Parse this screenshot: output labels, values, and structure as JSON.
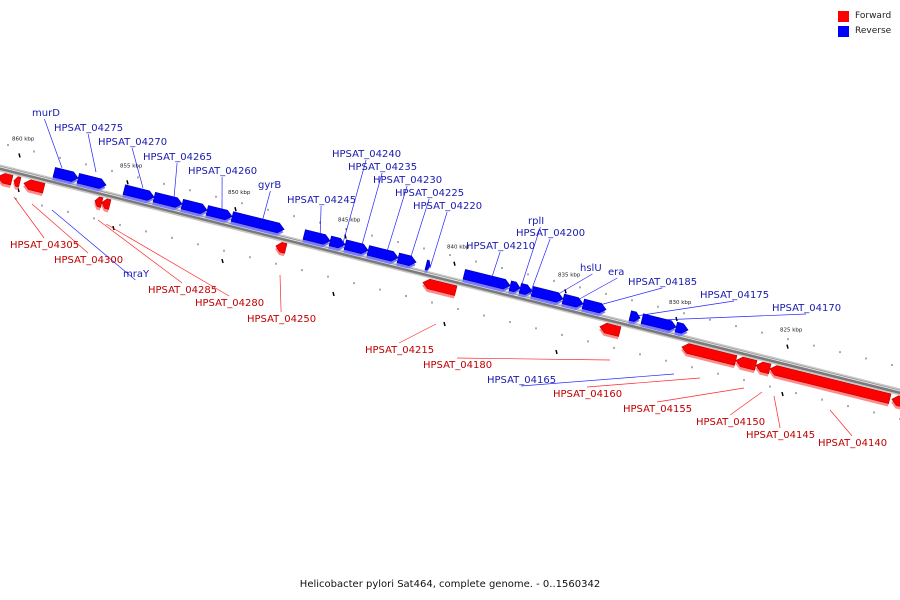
{
  "legend": {
    "forward_label": "Forward",
    "reverse_label": "Reverse",
    "forward_color": "#ff0000",
    "reverse_color": "#0000ff"
  },
  "caption": "Helicobacter pylori Sat464, complete genome. - 0..1560342",
  "scale_labels": [
    "860 kbp",
    "855 kbp",
    "850 kbp",
    "845 kbp",
    "840 kbp",
    "835 kbp",
    "830 kbp",
    "825 kbp"
  ],
  "genes": [
    {
      "label": "murD",
      "strand": "reverse"
    },
    {
      "label": "HPSAT_04275",
      "strand": "reverse"
    },
    {
      "label": "HPSAT_04270",
      "strand": "reverse"
    },
    {
      "label": "HPSAT_04265",
      "strand": "reverse"
    },
    {
      "label": "HPSAT_04260",
      "strand": "reverse"
    },
    {
      "label": "gyrB",
      "strand": "reverse"
    },
    {
      "label": "HPSAT_04245",
      "strand": "reverse"
    },
    {
      "label": "HPSAT_04240",
      "strand": "reverse"
    },
    {
      "label": "HPSAT_04235",
      "strand": "reverse"
    },
    {
      "label": "HPSAT_04230",
      "strand": "reverse"
    },
    {
      "label": "HPSAT_04225",
      "strand": "reverse"
    },
    {
      "label": "HPSAT_04220",
      "strand": "reverse"
    },
    {
      "label": "HPSAT_04210",
      "strand": "reverse"
    },
    {
      "label": "rplI",
      "strand": "reverse"
    },
    {
      "label": "HPSAT_04200",
      "strand": "reverse"
    },
    {
      "label": "hslU",
      "strand": "reverse"
    },
    {
      "label": "era",
      "strand": "reverse"
    },
    {
      "label": "HPSAT_04185",
      "strand": "reverse"
    },
    {
      "label": "HPSAT_04175",
      "strand": "reverse"
    },
    {
      "label": "HPSAT_04170",
      "strand": "reverse"
    },
    {
      "label": "mraY",
      "strand": "reverse"
    },
    {
      "label": "HPSAT_04165",
      "strand": "reverse"
    },
    {
      "label": "HPSAT_04305",
      "strand": "forward"
    },
    {
      "label": "HPSAT_04300",
      "strand": "forward"
    },
    {
      "label": "HPSAT_04285",
      "strand": "forward"
    },
    {
      "label": "HPSAT_04280",
      "strand": "forward"
    },
    {
      "label": "HPSAT_04250",
      "strand": "forward"
    },
    {
      "label": "HPSAT_04215",
      "strand": "forward"
    },
    {
      "label": "HPSAT_04180",
      "strand": "forward"
    },
    {
      "label": "HPSAT_04160",
      "strand": "forward"
    },
    {
      "label": "HPSAT_04155",
      "strand": "forward"
    },
    {
      "label": "HPSAT_04150",
      "strand": "forward"
    },
    {
      "label": "HPSAT_04145",
      "strand": "forward"
    },
    {
      "label": "HPSAT_04140",
      "strand": "forward"
    }
  ]
}
